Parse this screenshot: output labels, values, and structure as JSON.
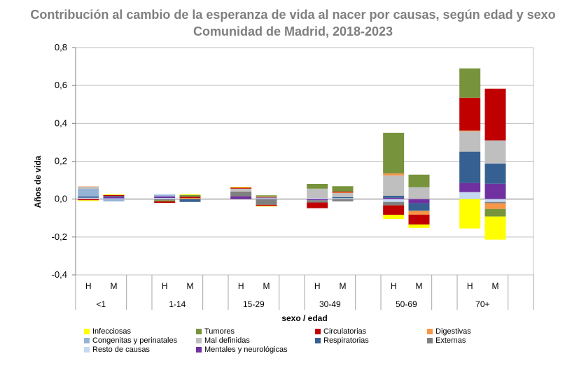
{
  "chart_data": {
    "type": "bar",
    "stacked": true,
    "title": "Contribución al cambio de la esperanza de vida al nacer por causas, según edad y sexo",
    "subtitle": "Comunidad de Madrid, 2018-2023",
    "xlabel": "sexo / edad",
    "ylabel": "Años de vida",
    "ylim": [
      -0.4,
      0.8
    ],
    "yticks": [
      -0.4,
      -0.2,
      0.0,
      0.2,
      0.4,
      0.6,
      0.8
    ],
    "ytick_labels": [
      "-0,4",
      "-0,2",
      "0,0",
      "0,2",
      "0,4",
      "0,6",
      "0,8"
    ],
    "grid": true,
    "legend_position": "bottom",
    "groups": [
      "<1",
      "1-14",
      "15-29",
      "30-49",
      "50-69",
      "70+"
    ],
    "sexes": [
      "H",
      "M"
    ],
    "categories": [
      "<1 H",
      "<1 M",
      "1-14 H",
      "1-14 M",
      "15-29 H",
      "15-29 M",
      "30-49 H",
      "30-49 M",
      "50-69 H",
      "50-69 M",
      "70+ H",
      "70+ M"
    ],
    "series": [
      {
        "name": "Infecciosas",
        "color": "#ffff00",
        "values": [
          -0.004,
          0.004,
          0,
          0.004,
          0.004,
          -0.003,
          0,
          0,
          -0.022,
          -0.018,
          -0.155,
          -0.122
        ]
      },
      {
        "name": "Tumores",
        "color": "#77933c",
        "values": [
          0,
          0,
          -0.006,
          0.01,
          0,
          0.007,
          0.025,
          0.028,
          0.214,
          0.066,
          0.155,
          -0.04
        ]
      },
      {
        "name": "Circulatorias",
        "color": "#c00000",
        "values": [
          -0.006,
          0.005,
          -0.008,
          0.006,
          0.006,
          -0.006,
          -0.03,
          0.005,
          -0.05,
          -0.052,
          0.173,
          0.273
        ]
      },
      {
        "name": "Digestivas",
        "color": "#f79646",
        "values": [
          0.002,
          0,
          0,
          0.006,
          0,
          0.004,
          0,
          0.003,
          0.011,
          -0.018,
          0.004,
          -0.03
        ]
      },
      {
        "name": "Congenitas y perinatales",
        "color": "#95b3d7",
        "values": [
          0.04,
          -0.012,
          0.01,
          0,
          0,
          0,
          0,
          0,
          0,
          0,
          0,
          0
        ]
      },
      {
        "name": "Mal definidas",
        "color": "#bfbfbf",
        "values": [
          0.011,
          0,
          0,
          0,
          0.015,
          0,
          0.05,
          0.022,
          0.107,
          0.063,
          0.107,
          0.122
        ]
      },
      {
        "name": "Respiratorias",
        "color": "#366092",
        "values": [
          0.007,
          0.005,
          0,
          -0.015,
          0,
          0,
          0,
          0.005,
          0.011,
          -0.037,
          0.166,
          0.107
        ]
      },
      {
        "name": "Externas",
        "color": "#808080",
        "values": [
          0,
          0,
          -0.006,
          0,
          0.025,
          -0.03,
          -0.012,
          -0.012,
          -0.018,
          -0.005,
          0,
          -0.007
        ]
      },
      {
        "name": "Resto de causas",
        "color": "#c5d9f1",
        "values": [
          0.007,
          0.004,
          0.006,
          0,
          0,
          0.005,
          0.005,
          0.005,
          -0.015,
          0,
          0.037,
          -0.015
        ]
      },
      {
        "name": "Mentales y neurológicas",
        "color": "#7030a0",
        "values": [
          0,
          0.007,
          0.008,
          0,
          0.015,
          0.004,
          -0.006,
          0,
          0.007,
          -0.022,
          0.048,
          0.081
        ]
      }
    ],
    "stack_order_positive": [
      "Resto de causas",
      "Mentales y neurológicas",
      "Respiratorias",
      "Congenitas y perinatales",
      "Externas",
      "Mal definidas",
      "Digestivas",
      "Circulatorias",
      "Tumores",
      "Infecciosas"
    ],
    "stack_order_negative": [
      "Mentales y neurológicas",
      "Resto de causas",
      "Respiratorias",
      "Externas",
      "Congenitas y perinatales",
      "Digestivas",
      "Tumores",
      "Circulatorias",
      "Infecciosas"
    ]
  },
  "legend": [
    {
      "label": "Infecciosas",
      "color": "#ffff00"
    },
    {
      "label": "Tumores",
      "color": "#77933c"
    },
    {
      "label": "Circulatorias",
      "color": "#c00000"
    },
    {
      "label": "Digestivas",
      "color": "#f79646"
    },
    {
      "label": "Congenitas y perinatales",
      "color": "#95b3d7"
    },
    {
      "label": "Mal definidas",
      "color": "#bfbfbf"
    },
    {
      "label": "Respiratorias",
      "color": "#366092"
    },
    {
      "label": "Externas",
      "color": "#808080"
    },
    {
      "label": "Resto de causas",
      "color": "#c5d9f1"
    },
    {
      "label": "Mentales y neurológicas",
      "color": "#7030a0"
    }
  ]
}
